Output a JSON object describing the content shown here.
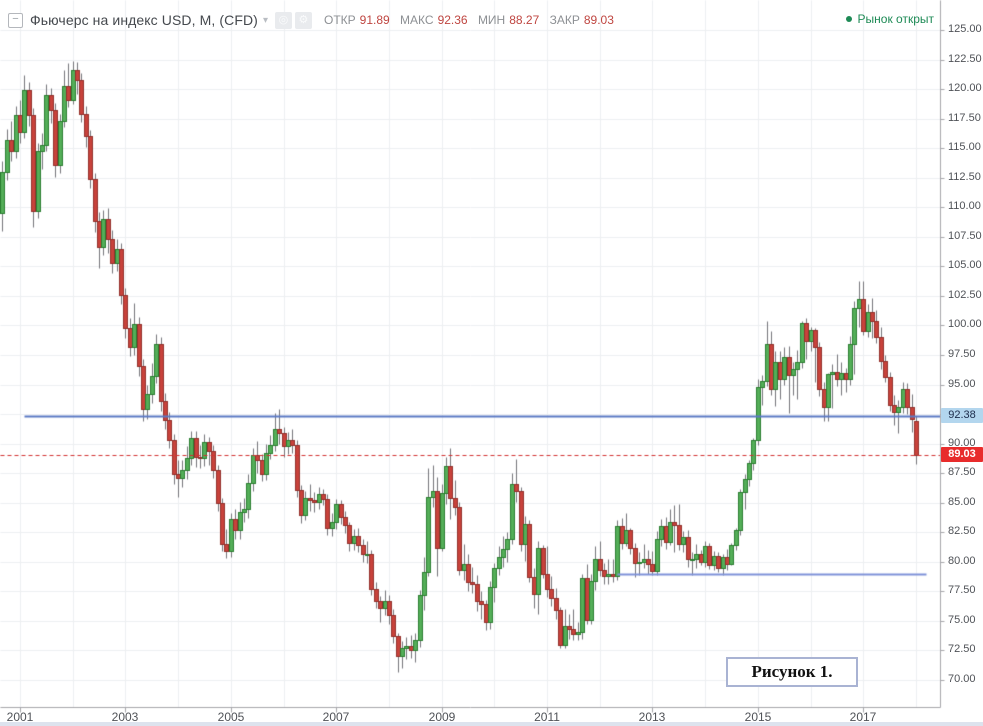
{
  "header": {
    "title": "Фьючерс на индекс USD, M, (CFD)",
    "ohlc": {
      "open_label": "ОТКР",
      "open": "91.89",
      "high_label": "МАКС",
      "high": "92.36",
      "low_label": "МИН",
      "low": "88.27",
      "close_label": "ЗАКР",
      "close": "89.03"
    },
    "market_status": "Рынок открыт"
  },
  "figure_caption": "Рисунок 1.",
  "colors": {
    "up_fill": "#54ae58",
    "up_stroke": "#2b7e31",
    "down_fill": "#c8423b",
    "down_stroke": "#93302b",
    "wick": "#75757a",
    "grid": "#edeff2",
    "axis_line": "#a6a6aa",
    "axis_text": "#4f5257",
    "value_red": "#bf4540",
    "status_green": "#1d8a55"
  },
  "chart_data": {
    "type": "candlestick",
    "title": "Фьючерс на индекс USD, M, (CFD)",
    "timeframe": "M",
    "ylim": [
      70,
      125
    ],
    "price_ticks": [
      125,
      122.5,
      120,
      117.5,
      115,
      112.5,
      110,
      107.5,
      105,
      102.5,
      100,
      97.5,
      95,
      92.5,
      90,
      87.5,
      85,
      82.5,
      80,
      77.5,
      75,
      72.5,
      70
    ],
    "year_ticks": [
      2001,
      2003,
      2005,
      2007,
      2009,
      2011,
      2013,
      2015,
      2017
    ],
    "start_month": "2000-09",
    "last_ohlc": {
      "open": 91.89,
      "high": 92.36,
      "low": 88.27,
      "close": 89.03
    },
    "levels": [
      {
        "name": "horizontal-level-line",
        "price": 92.38,
        "label": "92.38",
        "color": "#5b79c4",
        "style": "solid",
        "width": 2,
        "from": 2001.07,
        "to": "right"
      },
      {
        "name": "horizontal-support-line",
        "price": 78.95,
        "label": "",
        "color": "#7e92d8",
        "style": "solid",
        "width": 2,
        "from": 2012.32,
        "to": 2018.19
      },
      {
        "name": "last-price-line",
        "price": 89.03,
        "label": "89.03",
        "color": "#d23030",
        "style": "dashed",
        "width": 1,
        "from": "left",
        "to": "right"
      }
    ],
    "candles": [
      [
        109.5,
        113.9,
        108.0,
        113.0
      ],
      [
        113.0,
        116.6,
        112.3,
        115.7
      ],
      [
        115.7,
        117.3,
        113.9,
        114.8
      ],
      [
        114.8,
        118.6,
        114.2,
        117.8
      ],
      [
        117.8,
        119.1,
        115.4,
        116.4
      ],
      [
        116.4,
        121.2,
        115.9,
        119.9
      ],
      [
        119.9,
        120.6,
        116.9,
        117.8
      ],
      [
        117.8,
        118.4,
        108.3,
        109.7
      ],
      [
        109.7,
        115.4,
        109.1,
        114.8
      ],
      [
        114.8,
        116.3,
        113.2,
        115.3
      ],
      [
        115.3,
        120.4,
        114.8,
        119.5
      ],
      [
        119.5,
        120.1,
        117.1,
        118.2
      ],
      [
        118.2,
        118.8,
        112.6,
        113.6
      ],
      [
        113.6,
        117.9,
        112.9,
        117.3
      ],
      [
        117.3,
        121.6,
        116.8,
        120.3
      ],
      [
        120.3,
        122.2,
        118.5,
        119.1
      ],
      [
        119.1,
        122.4,
        118.7,
        121.6
      ],
      [
        121.6,
        122.3,
        119.6,
        120.8
      ],
      [
        120.8,
        121.4,
        117.2,
        117.9
      ],
      [
        117.9,
        118.6,
        115.1,
        116.0
      ],
      [
        116.0,
        116.5,
        111.6,
        112.4
      ],
      [
        112.4,
        112.9,
        107.9,
        108.8
      ],
      [
        108.8,
        109.6,
        104.9,
        106.6
      ],
      [
        106.6,
        109.8,
        106.0,
        109.0
      ],
      [
        109.0,
        109.9,
        106.1,
        107.3
      ],
      [
        107.3,
        108.1,
        104.4,
        105.3
      ],
      [
        105.3,
        107.3,
        104.6,
        106.5
      ],
      [
        106.5,
        107.0,
        101.8,
        102.6
      ],
      [
        102.6,
        103.2,
        98.9,
        99.8
      ],
      [
        99.8,
        100.6,
        97.4,
        98.2
      ],
      [
        98.2,
        101.9,
        97.5,
        100.1
      ],
      [
        100.1,
        100.7,
        95.7,
        96.6
      ],
      [
        96.6,
        97.2,
        91.9,
        92.9
      ],
      [
        92.9,
        95.0,
        92.1,
        94.2
      ],
      [
        94.2,
        96.8,
        93.4,
        95.7
      ],
      [
        95.7,
        99.3,
        95.1,
        98.4
      ],
      [
        98.4,
        99.0,
        92.8,
        93.6
      ],
      [
        93.6,
        94.3,
        91.2,
        92.0
      ],
      [
        92.0,
        92.7,
        89.6,
        90.3
      ],
      [
        90.3,
        90.8,
        86.6,
        87.4
      ],
      [
        87.4,
        88.6,
        85.5,
        87.1
      ],
      [
        87.1,
        88.6,
        86.3,
        87.8
      ],
      [
        87.8,
        89.8,
        87.0,
        88.8
      ],
      [
        88.8,
        91.1,
        88.2,
        90.5
      ],
      [
        90.5,
        91.1,
        88.0,
        88.9
      ],
      [
        88.9,
        89.9,
        87.9,
        88.8
      ],
      [
        88.8,
        90.8,
        88.1,
        90.1
      ],
      [
        90.1,
        90.6,
        88.2,
        89.4
      ],
      [
        89.4,
        89.9,
        87.1,
        87.8
      ],
      [
        87.8,
        88.2,
        84.3,
        85.0
      ],
      [
        85.0,
        85.4,
        80.9,
        81.5
      ],
      [
        81.5,
        82.8,
        80.3,
        80.9
      ],
      [
        80.9,
        84.1,
        80.4,
        83.6
      ],
      [
        83.6,
        84.5,
        81.9,
        82.7
      ],
      [
        82.7,
        85.1,
        81.9,
        84.2
      ],
      [
        84.2,
        85.4,
        83.4,
        84.5
      ],
      [
        84.5,
        87.4,
        83.7,
        86.7
      ],
      [
        86.7,
        89.6,
        86.0,
        89.0
      ],
      [
        89.0,
        90.2,
        87.5,
        88.6
      ],
      [
        88.6,
        89.1,
        86.8,
        87.4
      ],
      [
        87.4,
        90.0,
        86.9,
        89.2
      ],
      [
        89.2,
        90.7,
        88.7,
        89.9
      ],
      [
        89.9,
        92.6,
        89.4,
        91.2
      ],
      [
        91.2,
        92.9,
        90.0,
        90.9
      ],
      [
        90.9,
        91.4,
        88.9,
        89.8
      ],
      [
        89.8,
        91.0,
        89.1,
        90.3
      ],
      [
        90.3,
        91.2,
        89.2,
        89.9
      ],
      [
        89.9,
        90.3,
        85.5,
        86.1
      ],
      [
        86.1,
        86.5,
        83.3,
        84.0
      ],
      [
        84.0,
        86.0,
        83.5,
        85.4
      ],
      [
        85.4,
        86.6,
        84.3,
        85.2
      ],
      [
        85.2,
        85.9,
        84.2,
        85.1
      ],
      [
        85.1,
        86.3,
        84.5,
        85.7
      ],
      [
        85.7,
        86.2,
        84.8,
        85.3
      ],
      [
        85.3,
        85.7,
        82.3,
        82.9
      ],
      [
        82.9,
        84.1,
        82.2,
        83.4
      ],
      [
        83.4,
        85.3,
        82.8,
        84.9
      ],
      [
        84.9,
        85.2,
        83.2,
        83.8
      ],
      [
        83.8,
        84.3,
        82.4,
        83.1
      ],
      [
        83.1,
        83.4,
        80.9,
        81.6
      ],
      [
        81.6,
        82.8,
        81.0,
        82.2
      ],
      [
        82.2,
        82.9,
        80.8,
        81.4
      ],
      [
        81.4,
        81.9,
        80.0,
        80.7
      ],
      [
        80.7,
        81.8,
        79.9,
        80.7
      ],
      [
        80.7,
        81.0,
        77.2,
        77.7
      ],
      [
        77.7,
        78.3,
        76.1,
        76.7
      ],
      [
        76.7,
        77.1,
        74.9,
        76.1
      ],
      [
        76.1,
        77.6,
        75.5,
        76.7
      ],
      [
        76.7,
        77.2,
        74.7,
        75.5
      ],
      [
        75.5,
        76.0,
        73.1,
        73.7
      ],
      [
        73.7,
        74.0,
        70.7,
        72.0
      ],
      [
        72.0,
        73.3,
        71.0,
        72.7
      ],
      [
        72.7,
        73.6,
        71.8,
        72.9
      ],
      [
        72.9,
        73.8,
        71.9,
        72.5
      ],
      [
        72.5,
        74.0,
        71.5,
        73.4
      ],
      [
        73.4,
        77.6,
        72.8,
        77.2
      ],
      [
        77.2,
        80.4,
        75.9,
        79.1
      ],
      [
        79.1,
        87.9,
        78.8,
        85.5
      ],
      [
        85.5,
        88.2,
        84.6,
        86.0
      ],
      [
        86.0,
        87.2,
        78.8,
        81.2
      ],
      [
        81.2,
        86.6,
        80.9,
        85.8
      ],
      [
        85.8,
        88.9,
        84.9,
        88.1
      ],
      [
        88.1,
        89.6,
        83.6,
        85.4
      ],
      [
        85.4,
        86.9,
        84.0,
        84.6
      ],
      [
        84.6,
        85.1,
        78.9,
        79.3
      ],
      [
        79.3,
        81.5,
        78.5,
        79.8
      ],
      [
        79.8,
        80.7,
        77.5,
        78.3
      ],
      [
        78.3,
        79.6,
        77.4,
        78.1
      ],
      [
        78.1,
        78.9,
        75.8,
        76.7
      ],
      [
        76.7,
        77.5,
        75.2,
        76.4
      ],
      [
        76.4,
        76.8,
        74.2,
        74.9
      ],
      [
        74.9,
        78.4,
        74.3,
        77.9
      ],
      [
        77.9,
        79.9,
        76.6,
        79.5
      ],
      [
        79.5,
        81.3,
        78.9,
        80.4
      ],
      [
        80.4,
        82.2,
        79.6,
        81.1
      ],
      [
        81.1,
        82.5,
        80.0,
        81.9
      ],
      [
        81.9,
        87.5,
        81.5,
        86.6
      ],
      [
        86.6,
        88.7,
        85.1,
        86.0
      ],
      [
        86.0,
        86.3,
        80.9,
        81.5
      ],
      [
        81.5,
        83.9,
        80.1,
        83.2
      ],
      [
        83.2,
        83.5,
        78.3,
        78.7
      ],
      [
        78.7,
        79.5,
        76.1,
        77.3
      ],
      [
        77.3,
        81.8,
        75.6,
        81.2
      ],
      [
        81.2,
        81.4,
        78.6,
        79.0
      ],
      [
        79.0,
        81.3,
        77.0,
        77.7
      ],
      [
        77.7,
        78.8,
        76.3,
        76.9
      ],
      [
        76.9,
        77.8,
        75.2,
        75.9
      ],
      [
        75.9,
        76.2,
        72.7,
        73.0
      ],
      [
        73.0,
        76.0,
        72.7,
        74.6
      ],
      [
        74.6,
        75.6,
        73.5,
        74.3
      ],
      [
        74.3,
        76.0,
        73.4,
        73.9
      ],
      [
        73.9,
        74.9,
        73.4,
        74.1
      ],
      [
        74.1,
        79.0,
        73.5,
        78.6
      ],
      [
        78.6,
        79.8,
        74.7,
        75.1
      ],
      [
        75.1,
        79.0,
        74.7,
        78.4
      ],
      [
        78.4,
        81.3,
        77.6,
        80.2
      ],
      [
        80.2,
        81.8,
        78.8,
        79.3
      ],
      [
        79.3,
        79.9,
        78.1,
        78.8
      ],
      [
        78.8,
        80.2,
        78.1,
        79.0
      ],
      [
        79.0,
        80.2,
        78.3,
        78.8
      ],
      [
        78.8,
        83.5,
        78.5,
        83.0
      ],
      [
        83.0,
        83.7,
        81.1,
        81.6
      ],
      [
        81.6,
        84.1,
        81.3,
        82.7
      ],
      [
        82.7,
        82.9,
        80.7,
        81.2
      ],
      [
        81.2,
        81.6,
        78.7,
        79.9
      ],
      [
        79.9,
        80.8,
        78.9,
        80.0
      ],
      [
        80.0,
        81.5,
        79.5,
        80.2
      ],
      [
        80.2,
        81.0,
        79.0,
        79.8
      ],
      [
        79.8,
        80.9,
        78.9,
        79.2
      ],
      [
        79.2,
        82.6,
        78.9,
        81.9
      ],
      [
        81.9,
        83.6,
        81.3,
        83.0
      ],
      [
        83.0,
        83.8,
        81.1,
        81.7
      ],
      [
        81.7,
        84.5,
        81.4,
        83.4
      ],
      [
        83.4,
        84.8,
        80.8,
        83.1
      ],
      [
        83.1,
        84.9,
        81.0,
        81.5
      ],
      [
        81.5,
        82.6,
        80.8,
        82.1
      ],
      [
        82.1,
        82.7,
        79.6,
        80.2
      ],
      [
        80.2,
        80.8,
        78.9,
        80.2
      ],
      [
        80.2,
        81.5,
        79.5,
        80.7
      ],
      [
        80.7,
        81.0,
        79.7,
        80.0
      ],
      [
        80.0,
        81.8,
        79.6,
        81.3
      ],
      [
        81.3,
        81.6,
        79.4,
        79.7
      ],
      [
        79.7,
        80.9,
        79.3,
        80.5
      ],
      [
        80.5,
        80.8,
        79.1,
        79.5
      ],
      [
        79.5,
        80.7,
        78.9,
        80.4
      ],
      [
        80.4,
        81.1,
        79.3,
        79.8
      ],
      [
        79.8,
        81.6,
        79.7,
        81.4
      ],
      [
        81.4,
        82.9,
        81.0,
        82.7
      ],
      [
        82.7,
        86.2,
        82.3,
        85.9
      ],
      [
        85.9,
        87.4,
        84.5,
        87.0
      ],
      [
        87.0,
        88.6,
        86.4,
        88.4
      ],
      [
        88.4,
        90.5,
        87.8,
        90.3
      ],
      [
        90.3,
        95.5,
        89.9,
        94.8
      ],
      [
        94.8,
        95.8,
        93.3,
        95.3
      ],
      [
        95.3,
        100.4,
        94.9,
        98.4
      ],
      [
        98.4,
        99.5,
        94.1,
        94.6
      ],
      [
        94.6,
        97.8,
        93.2,
        96.9
      ],
      [
        96.9,
        97.8,
        93.8,
        95.5
      ],
      [
        95.5,
        98.2,
        95.0,
        97.3
      ],
      [
        97.3,
        98.3,
        92.6,
        95.8
      ],
      [
        95.8,
        96.9,
        94.1,
        96.3
      ],
      [
        96.3,
        97.9,
        93.8,
        96.9
      ],
      [
        96.9,
        100.4,
        96.4,
        100.2
      ],
      [
        100.2,
        100.6,
        97.2,
        98.7
      ],
      [
        98.7,
        99.9,
        97.8,
        99.6
      ],
      [
        99.6,
        99.8,
        95.2,
        98.2
      ],
      [
        98.2,
        98.6,
        94.0,
        94.6
      ],
      [
        94.6,
        95.2,
        91.9,
        93.1
      ],
      [
        93.1,
        96.0,
        91.9,
        95.9
      ],
      [
        95.9,
        96.7,
        93.0,
        96.1
      ],
      [
        96.1,
        97.6,
        94.9,
        95.5
      ],
      [
        95.5,
        96.9,
        94.1,
        96.0
      ],
      [
        96.0,
        96.4,
        94.4,
        95.5
      ],
      [
        95.5,
        99.1,
        95.0,
        98.4
      ],
      [
        98.4,
        102.1,
        95.9,
        101.5
      ],
      [
        101.5,
        103.8,
        99.9,
        102.2
      ],
      [
        102.2,
        103.8,
        99.2,
        99.5
      ],
      [
        99.5,
        101.8,
        99.0,
        101.1
      ],
      [
        101.1,
        102.3,
        98.9,
        100.4
      ],
      [
        100.4,
        101.3,
        98.5,
        99.0
      ],
      [
        99.0,
        99.9,
        96.3,
        97.0
      ],
      [
        97.0,
        97.5,
        95.2,
        95.6
      ],
      [
        95.6,
        96.1,
        92.8,
        93.3
      ],
      [
        93.3,
        94.1,
        91.6,
        92.7
      ],
      [
        92.7,
        93.7,
        90.9,
        93.1
      ],
      [
        93.1,
        95.2,
        92.6,
        94.6
      ],
      [
        94.6,
        95.1,
        92.5,
        93.1
      ],
      [
        93.1,
        94.2,
        91.0,
        92.1
      ],
      [
        91.89,
        92.36,
        88.27,
        89.03
      ]
    ]
  }
}
